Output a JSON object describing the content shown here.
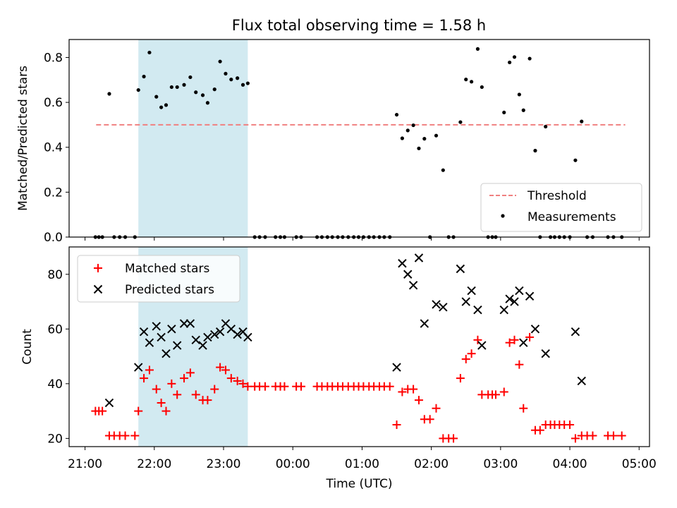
{
  "title": "Flux total observing time = 1.58 h",
  "colors": {
    "threshold": "#f08080",
    "shade": "#add8e6",
    "matched": "#ff0000",
    "predicted": "#000000",
    "measure": "#000000"
  },
  "chart_data": [
    {
      "type": "scatter",
      "title": "Flux total observing time = 1.58 h",
      "xlabel": "",
      "ylabel": "Matched/Predicted stars",
      "x_unit": "hours since 21:00 UTC",
      "xlim": [
        -0.23,
        8.15
      ],
      "ylim": [
        0,
        0.88
      ],
      "yticks": [
        "0.0",
        "0.2",
        "0.4",
        "0.6",
        "0.8"
      ],
      "shaded_region": [
        0.77,
        2.35
      ],
      "legend": {
        "placement": "lower-right",
        "entries": [
          "Threshold",
          "Measurements"
        ]
      },
      "threshold": {
        "name": "Threshold",
        "y": 0.5,
        "x_range": [
          0.16,
          7.8
        ]
      },
      "series": [
        {
          "name": "Measurements",
          "points": [
            [
              0.15,
              0
            ],
            [
              0.2,
              0
            ],
            [
              0.25,
              0
            ],
            [
              0.35,
              0.638
            ],
            [
              0.42,
              0
            ],
            [
              0.5,
              0
            ],
            [
              0.58,
              0
            ],
            [
              0.72,
              0
            ],
            [
              0.77,
              0.655
            ],
            [
              0.85,
              0.715
            ],
            [
              0.93,
              0.822
            ],
            [
              1.03,
              0.625
            ],
            [
              1.1,
              0.578
            ],
            [
              1.17,
              0.588
            ],
            [
              1.25,
              0.668
            ],
            [
              1.33,
              0.668
            ],
            [
              1.43,
              0.678
            ],
            [
              1.52,
              0.712
            ],
            [
              1.6,
              0.645
            ],
            [
              1.7,
              0.632
            ],
            [
              1.77,
              0.598
            ],
            [
              1.87,
              0.658
            ],
            [
              1.95,
              0.782
            ],
            [
              2.03,
              0.728
            ],
            [
              2.11,
              0.702
            ],
            [
              2.2,
              0.708
            ],
            [
              2.28,
              0.678
            ],
            [
              2.35,
              0.685
            ],
            [
              2.45,
              0
            ],
            [
              2.52,
              0
            ],
            [
              2.6,
              0
            ],
            [
              2.75,
              0
            ],
            [
              2.82,
              0
            ],
            [
              2.88,
              0
            ],
            [
              3.05,
              0
            ],
            [
              3.12,
              0
            ],
            [
              3.35,
              0
            ],
            [
              3.42,
              0
            ],
            [
              3.5,
              0
            ],
            [
              3.57,
              0
            ],
            [
              3.65,
              0
            ],
            [
              3.72,
              0
            ],
            [
              3.8,
              0
            ],
            [
              3.88,
              0
            ],
            [
              3.95,
              0
            ],
            [
              4.02,
              0
            ],
            [
              4.1,
              0
            ],
            [
              4.17,
              0
            ],
            [
              4.25,
              0
            ],
            [
              4.32,
              0
            ],
            [
              4.4,
              0
            ],
            [
              4.5,
              0.545
            ],
            [
              4.58,
              0.44
            ],
            [
              4.66,
              0.475
            ],
            [
              4.74,
              0.498
            ],
            [
              4.82,
              0.395
            ],
            [
              4.9,
              0.438
            ],
            [
              4.98,
              0
            ],
            [
              5.07,
              0.452
            ],
            [
              5.17,
              0.298
            ],
            [
              5.25,
              0
            ],
            [
              5.32,
              0
            ],
            [
              5.42,
              0.512
            ],
            [
              5.5,
              0.702
            ],
            [
              5.58,
              0.692
            ],
            [
              5.67,
              0.838
            ],
            [
              5.73,
              0.668
            ],
            [
              5.82,
              0
            ],
            [
              5.88,
              0
            ],
            [
              5.93,
              0
            ],
            [
              6.05,
              0.555
            ],
            [
              6.13,
              0.778
            ],
            [
              6.2,
              0.802
            ],
            [
              6.27,
              0.635
            ],
            [
              6.33,
              0.565
            ],
            [
              6.42,
              0.795
            ],
            [
              6.5,
              0.385
            ],
            [
              6.57,
              0
            ],
            [
              6.65,
              0.492
            ],
            [
              6.72,
              0
            ],
            [
              6.78,
              0
            ],
            [
              6.85,
              0
            ],
            [
              6.92,
              0
            ],
            [
              7.0,
              0
            ],
            [
              7.08,
              0.342
            ],
            [
              7.17,
              0.515
            ],
            [
              7.25,
              0
            ],
            [
              7.33,
              0
            ],
            [
              7.55,
              0
            ],
            [
              7.63,
              0
            ],
            [
              7.75,
              0
            ]
          ]
        }
      ]
    },
    {
      "type": "scatter",
      "title": "",
      "xlabel": "Time (UTC)",
      "ylabel": "Count",
      "x_unit": "hours since 21:00 UTC",
      "xlim": [
        -0.23,
        8.15
      ],
      "ylim": [
        17,
        90
      ],
      "yticks": [
        "20",
        "40",
        "60",
        "80"
      ],
      "xticks": [
        "21:00",
        "22:00",
        "23:00",
        "00:00",
        "01:00",
        "02:00",
        "03:00",
        "04:00",
        "05:00"
      ],
      "shaded_region": [
        0.77,
        2.35
      ],
      "legend": {
        "placement": "upper-left",
        "entries": [
          "Matched stars",
          "Predicted stars"
        ]
      },
      "series": [
        {
          "name": "Matched stars",
          "points": [
            [
              0.15,
              30
            ],
            [
              0.2,
              30
            ],
            [
              0.25,
              30
            ],
            [
              0.35,
              21
            ],
            [
              0.42,
              21
            ],
            [
              0.5,
              21
            ],
            [
              0.58,
              21
            ],
            [
              0.72,
              21
            ],
            [
              0.77,
              30
            ],
            [
              0.85,
              42
            ],
            [
              0.93,
              45
            ],
            [
              1.03,
              38
            ],
            [
              1.1,
              33
            ],
            [
              1.17,
              30
            ],
            [
              1.25,
              40
            ],
            [
              1.33,
              36
            ],
            [
              1.43,
              42
            ],
            [
              1.52,
              44
            ],
            [
              1.6,
              36
            ],
            [
              1.7,
              34
            ],
            [
              1.77,
              34
            ],
            [
              1.87,
              38
            ],
            [
              1.95,
              46
            ],
            [
              2.03,
              45
            ],
            [
              2.11,
              42
            ],
            [
              2.2,
              41
            ],
            [
              2.28,
              40
            ],
            [
              2.35,
              39
            ],
            [
              2.45,
              39
            ],
            [
              2.52,
              39
            ],
            [
              2.6,
              39
            ],
            [
              2.75,
              39
            ],
            [
              2.82,
              39
            ],
            [
              2.88,
              39
            ],
            [
              3.05,
              39
            ],
            [
              3.12,
              39
            ],
            [
              3.35,
              39
            ],
            [
              3.42,
              39
            ],
            [
              3.5,
              39
            ],
            [
              3.57,
              39
            ],
            [
              3.65,
              39
            ],
            [
              3.72,
              39
            ],
            [
              3.8,
              39
            ],
            [
              3.88,
              39
            ],
            [
              3.95,
              39
            ],
            [
              4.02,
              39
            ],
            [
              4.1,
              39
            ],
            [
              4.17,
              39
            ],
            [
              4.25,
              39
            ],
            [
              4.32,
              39
            ],
            [
              4.4,
              39
            ],
            [
              4.5,
              25
            ],
            [
              4.58,
              37
            ],
            [
              4.66,
              38
            ],
            [
              4.74,
              38
            ],
            [
              4.82,
              34
            ],
            [
              4.9,
              27
            ],
            [
              4.98,
              27
            ],
            [
              5.07,
              31
            ],
            [
              5.17,
              20
            ],
            [
              5.25,
              20
            ],
            [
              5.32,
              20
            ],
            [
              5.42,
              42
            ],
            [
              5.5,
              49
            ],
            [
              5.58,
              51
            ],
            [
              5.67,
              56
            ],
            [
              5.73,
              36
            ],
            [
              5.82,
              36
            ],
            [
              5.88,
              36
            ],
            [
              5.93,
              36
            ],
            [
              6.05,
              37
            ],
            [
              6.13,
              55
            ],
            [
              6.2,
              56
            ],
            [
              6.27,
              47
            ],
            [
              6.33,
              31
            ],
            [
              6.42,
              57
            ],
            [
              6.5,
              23
            ],
            [
              6.57,
              23
            ],
            [
              6.65,
              25
            ],
            [
              6.72,
              25
            ],
            [
              6.78,
              25
            ],
            [
              6.85,
              25
            ],
            [
              6.92,
              25
            ],
            [
              7.0,
              25
            ],
            [
              7.08,
              20
            ],
            [
              7.17,
              21
            ],
            [
              7.25,
              21
            ],
            [
              7.33,
              21
            ],
            [
              7.55,
              21
            ],
            [
              7.63,
              21
            ],
            [
              7.75,
              21
            ]
          ]
        },
        {
          "name": "Predicted stars",
          "points": [
            [
              0.35,
              33
            ],
            [
              0.77,
              46
            ],
            [
              0.85,
              59
            ],
            [
              0.93,
              55
            ],
            [
              1.03,
              61
            ],
            [
              1.1,
              57
            ],
            [
              1.17,
              51
            ],
            [
              1.25,
              60
            ],
            [
              1.33,
              54
            ],
            [
              1.43,
              62
            ],
            [
              1.52,
              62
            ],
            [
              1.6,
              56
            ],
            [
              1.7,
              54
            ],
            [
              1.77,
              57
            ],
            [
              1.87,
              58
            ],
            [
              1.95,
              59
            ],
            [
              2.03,
              62
            ],
            [
              2.11,
              60
            ],
            [
              2.2,
              58
            ],
            [
              2.28,
              59
            ],
            [
              2.35,
              57
            ],
            [
              4.5,
              46
            ],
            [
              4.58,
              84
            ],
            [
              4.66,
              80
            ],
            [
              4.74,
              76
            ],
            [
              4.82,
              86
            ],
            [
              4.9,
              62
            ],
            [
              5.07,
              69
            ],
            [
              5.17,
              68
            ],
            [
              5.42,
              82
            ],
            [
              5.5,
              70
            ],
            [
              5.58,
              74
            ],
            [
              5.67,
              67
            ],
            [
              5.73,
              54
            ],
            [
              6.05,
              67
            ],
            [
              6.13,
              71
            ],
            [
              6.2,
              70
            ],
            [
              6.27,
              74
            ],
            [
              6.33,
              55
            ],
            [
              6.42,
              72
            ],
            [
              6.5,
              60
            ],
            [
              6.65,
              51
            ],
            [
              7.08,
              59
            ],
            [
              7.17,
              41
            ]
          ]
        }
      ]
    }
  ]
}
